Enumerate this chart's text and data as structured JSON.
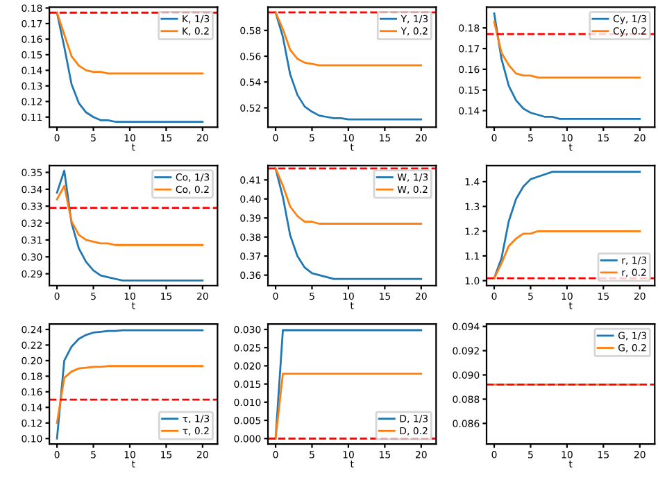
{
  "chart_data": [
    {
      "type": "line",
      "xlabel": "t",
      "x": [
        0,
        1,
        2,
        3,
        4,
        5,
        6,
        7,
        8,
        9,
        10,
        11,
        12,
        13,
        14,
        15,
        16,
        17,
        18,
        19,
        20
      ],
      "xlim": [
        -1.05,
        22.05
      ],
      "xticks": [
        0,
        5,
        10,
        15,
        20
      ],
      "ylim": [
        0.1035,
        0.1805
      ],
      "yticks": [
        0.11,
        0.12,
        0.13,
        0.14,
        0.15,
        0.16,
        0.17,
        0.18
      ],
      "legend": "top right",
      "line_style": "solid",
      "series": [
        {
          "name": "K, 1/3",
          "color": "#1f77b4",
          "values": [
            0.177,
            0.155,
            0.131,
            0.119,
            0.113,
            0.11,
            0.108,
            0.108,
            0.107,
            0.107,
            0.107,
            0.107,
            0.107,
            0.107,
            0.107,
            0.107,
            0.107,
            0.107,
            0.107,
            0.107,
            0.107
          ]
        },
        {
          "name": "K, 0.2",
          "color": "#ff7f0e",
          "values": [
            0.177,
            0.163,
            0.149,
            0.143,
            0.14,
            0.139,
            0.139,
            0.138,
            0.138,
            0.138,
            0.138,
            0.138,
            0.138,
            0.138,
            0.138,
            0.138,
            0.138,
            0.138,
            0.138,
            0.138,
            0.138
          ]
        }
      ],
      "ref_lines": [
        {
          "axis": "y",
          "value": 0.177,
          "color": "#ff0000",
          "line_style": "dashed"
        }
      ]
    },
    {
      "type": "line",
      "xlabel": "t",
      "x": [
        0,
        1,
        2,
        3,
        4,
        5,
        6,
        7,
        8,
        9,
        10,
        11,
        12,
        13,
        14,
        15,
        16,
        17,
        18,
        19,
        20
      ],
      "xlim": [
        -1.05,
        22.05
      ],
      "xticks": [
        0,
        5,
        10,
        15,
        20
      ],
      "ylim": [
        0.505,
        0.598
      ],
      "yticks": [
        0.52,
        0.54,
        0.56,
        0.58
      ],
      "legend": "top right",
      "line_style": "solid",
      "series": [
        {
          "name": "Y, 1/3",
          "color": "#1f77b4",
          "values": [
            0.594,
            0.575,
            0.546,
            0.53,
            0.521,
            0.517,
            0.514,
            0.513,
            0.512,
            0.512,
            0.511,
            0.511,
            0.511,
            0.511,
            0.511,
            0.511,
            0.511,
            0.511,
            0.511,
            0.511,
            0.511
          ]
        },
        {
          "name": "Y, 0.2",
          "color": "#ff7f0e",
          "values": [
            0.594,
            0.581,
            0.565,
            0.558,
            0.555,
            0.554,
            0.553,
            0.553,
            0.553,
            0.553,
            0.553,
            0.553,
            0.553,
            0.553,
            0.553,
            0.553,
            0.553,
            0.553,
            0.553,
            0.553,
            0.553
          ]
        }
      ],
      "ref_lines": [
        {
          "axis": "y",
          "value": 0.594,
          "color": "#ff0000",
          "line_style": "dashed"
        }
      ]
    },
    {
      "type": "line",
      "xlabel": "t",
      "x": [
        0,
        1,
        2,
        3,
        4,
        5,
        6,
        7,
        8,
        9,
        10,
        11,
        12,
        13,
        14,
        15,
        16,
        17,
        18,
        19,
        20
      ],
      "xlim": [
        -1.05,
        22.05
      ],
      "xticks": [
        0,
        5,
        10,
        15,
        20
      ],
      "ylim": [
        0.132,
        0.19
      ],
      "yticks": [
        0.14,
        0.15,
        0.16,
        0.17,
        0.18
      ],
      "legend": "top right",
      "line_style": "solid",
      "series": [
        {
          "name": "Cy, 1/3",
          "color": "#1f77b4",
          "values": [
            0.187,
            0.165,
            0.152,
            0.145,
            0.141,
            0.139,
            0.138,
            0.137,
            0.137,
            0.136,
            0.136,
            0.136,
            0.136,
            0.136,
            0.136,
            0.136,
            0.136,
            0.136,
            0.136,
            0.136,
            0.136
          ]
        },
        {
          "name": "Cy, 0.2",
          "color": "#ff7f0e",
          "values": [
            0.183,
            0.168,
            0.162,
            0.158,
            0.157,
            0.157,
            0.156,
            0.156,
            0.156,
            0.156,
            0.156,
            0.156,
            0.156,
            0.156,
            0.156,
            0.156,
            0.156,
            0.156,
            0.156,
            0.156,
            0.156
          ]
        }
      ],
      "ref_lines": [
        {
          "axis": "y",
          "value": 0.177,
          "color": "#ff0000",
          "line_style": "dashed"
        }
      ]
    },
    {
      "type": "line",
      "xlabel": "t",
      "x": [
        0,
        1,
        2,
        3,
        4,
        5,
        6,
        7,
        8,
        9,
        10,
        11,
        12,
        13,
        14,
        15,
        16,
        17,
        18,
        19,
        20
      ],
      "xlim": [
        -1.05,
        22.05
      ],
      "xticks": [
        0,
        5,
        10,
        15,
        20
      ],
      "ylim": [
        0.283,
        0.354
      ],
      "yticks": [
        0.29,
        {
          "value": 0.3,
          "label": "0.30"
        },
        0.31,
        0.32,
        0.33,
        0.34,
        0.35
      ],
      "legend": "top right",
      "line_style": "solid",
      "series": [
        {
          "name": "Co, 1/3",
          "color": "#1f77b4",
          "values": [
            0.338,
            0.351,
            0.32,
            0.305,
            0.297,
            0.292,
            0.289,
            0.288,
            0.287,
            0.286,
            0.286,
            0.286,
            0.286,
            0.286,
            0.286,
            0.286,
            0.286,
            0.286,
            0.286,
            0.286,
            0.286
          ]
        },
        {
          "name": "Co, 0.2",
          "color": "#ff7f0e",
          "values": [
            0.334,
            0.342,
            0.321,
            0.313,
            0.31,
            0.309,
            0.308,
            0.308,
            0.307,
            0.307,
            0.307,
            0.307,
            0.307,
            0.307,
            0.307,
            0.307,
            0.307,
            0.307,
            0.307,
            0.307,
            0.307
          ]
        }
      ],
      "ref_lines": [
        {
          "axis": "y",
          "value": 0.329,
          "color": "#ff0000",
          "line_style": "dashed"
        }
      ]
    },
    {
      "type": "line",
      "xlabel": "t",
      "x": [
        0,
        1,
        2,
        3,
        4,
        5,
        6,
        7,
        8,
        9,
        10,
        11,
        12,
        13,
        14,
        15,
        16,
        17,
        18,
        19,
        20
      ],
      "xlim": [
        -1.05,
        22.05
      ],
      "xticks": [
        0,
        5,
        10,
        15,
        20
      ],
      "ylim": [
        0.3545,
        0.4175
      ],
      "yticks": [
        0.36,
        0.37,
        0.38,
        0.39,
        {
          "value": 0.4,
          "label": "0.40"
        },
        0.41
      ],
      "legend": "top right",
      "line_style": "solid",
      "series": [
        {
          "name": "W, 1/3",
          "color": "#1f77b4",
          "values": [
            0.416,
            0.401,
            0.381,
            0.37,
            0.364,
            0.361,
            0.36,
            0.359,
            0.358,
            0.358,
            0.358,
            0.358,
            0.358,
            0.358,
            0.358,
            0.358,
            0.358,
            0.358,
            0.358,
            0.358,
            0.358
          ]
        },
        {
          "name": "W, 0.2",
          "color": "#ff7f0e",
          "values": [
            0.416,
            0.407,
            0.396,
            0.391,
            0.388,
            0.388,
            0.387,
            0.387,
            0.387,
            0.387,
            0.387,
            0.387,
            0.387,
            0.387,
            0.387,
            0.387,
            0.387,
            0.387,
            0.387,
            0.387,
            0.387
          ]
        }
      ],
      "ref_lines": [
        {
          "axis": "y",
          "value": 0.416,
          "color": "#ff0000",
          "line_style": "dashed"
        }
      ]
    },
    {
      "type": "line",
      "xlabel": "t",
      "x": [
        0,
        1,
        2,
        3,
        4,
        5,
        6,
        7,
        8,
        9,
        10,
        11,
        12,
        13,
        14,
        15,
        16,
        17,
        18,
        19,
        20
      ],
      "xlim": [
        -1.05,
        22.05
      ],
      "xticks": [
        0,
        5,
        10,
        15,
        20
      ],
      "ylim": [
        0.98,
        1.465
      ],
      "yticks": [
        {
          "value": 1.0,
          "label": "1.0"
        },
        1.1,
        1.2,
        1.3,
        1.4
      ],
      "legend": "bottom right",
      "line_style": "solid",
      "series": [
        {
          "name": "r, 1/3",
          "color": "#1f77b4",
          "values": [
            1.01,
            1.09,
            1.24,
            1.33,
            1.38,
            1.41,
            1.42,
            1.43,
            1.44,
            1.44,
            1.44,
            1.44,
            1.44,
            1.44,
            1.44,
            1.44,
            1.44,
            1.44,
            1.44,
            1.44,
            1.44
          ]
        },
        {
          "name": "r, 0.2",
          "color": "#ff7f0e",
          "values": [
            1.01,
            1.07,
            1.14,
            1.17,
            1.19,
            1.19,
            1.2,
            1.2,
            1.2,
            1.2,
            1.2,
            1.2,
            1.2,
            1.2,
            1.2,
            1.2,
            1.2,
            1.2,
            1.2,
            1.2,
            1.2
          ]
        }
      ],
      "ref_lines": [
        {
          "axis": "y",
          "value": 1.01,
          "color": "#ff0000",
          "line_style": "dashed"
        }
      ]
    },
    {
      "type": "line",
      "xlabel": "t",
      "x": [
        0,
        1,
        2,
        3,
        4,
        5,
        6,
        7,
        8,
        9,
        10,
        11,
        12,
        13,
        14,
        15,
        16,
        17,
        18,
        19,
        20
      ],
      "xlim": [
        -1.05,
        22.05
      ],
      "xticks": [
        0,
        5,
        10,
        15,
        20
      ],
      "ylim": [
        0.093,
        0.247
      ],
      "yticks": [
        {
          "value": 0.1,
          "label": "0.10"
        },
        0.12,
        0.14,
        0.16,
        0.18,
        {
          "value": 0.2,
          "label": "0.20"
        },
        0.22,
        0.24
      ],
      "legend": "bottom right",
      "line_style": "solid",
      "series": [
        {
          "name": "τ, 1/3",
          "color": "#1f77b4",
          "values": [
            0.1,
            0.2,
            0.218,
            0.228,
            0.233,
            0.236,
            0.237,
            0.238,
            0.238,
            0.239,
            0.239,
            0.239,
            0.239,
            0.239,
            0.239,
            0.239,
            0.239,
            0.239,
            0.239,
            0.239,
            0.239
          ]
        },
        {
          "name": "τ, 0.2",
          "color": "#ff7f0e",
          "values": [
            0.12,
            0.178,
            0.186,
            0.19,
            0.191,
            0.192,
            0.192,
            0.193,
            0.193,
            0.193,
            0.193,
            0.193,
            0.193,
            0.193,
            0.193,
            0.193,
            0.193,
            0.193,
            0.193,
            0.193,
            0.193
          ]
        }
      ],
      "ref_lines": [
        {
          "axis": "y",
          "value": 0.15,
          "color": "#ff0000",
          "line_style": "dashed"
        }
      ]
    },
    {
      "type": "line",
      "xlabel": "t",
      "x": [
        0,
        1,
        2,
        3,
        4,
        5,
        6,
        7,
        8,
        9,
        10,
        11,
        12,
        13,
        14,
        15,
        16,
        17,
        18,
        19,
        20
      ],
      "xlim": [
        -1.05,
        22.05
      ],
      "xticks": [
        0,
        5,
        10,
        15,
        20
      ],
      "ylim": [
        -0.0015,
        0.0315
      ],
      "yticks": [
        {
          "value": 0,
          "label": "0.000"
        },
        {
          "value": 0.005,
          "label": "0.005"
        },
        {
          "value": 0.01,
          "label": "0.010"
        },
        {
          "value": 0.015,
          "label": "0.015"
        },
        {
          "value": 0.02,
          "label": "0.020"
        },
        {
          "value": 0.025,
          "label": "0.025"
        },
        {
          "value": 0.03,
          "label": "0.030"
        }
      ],
      "legend": "bottom right",
      "line_style": "solid",
      "series": [
        {
          "name": "D, 1/3",
          "color": "#1f77b4",
          "values": [
            0,
            0.0298,
            0.0298,
            0.0298,
            0.0298,
            0.0298,
            0.0298,
            0.0298,
            0.0298,
            0.0298,
            0.0298,
            0.0298,
            0.0298,
            0.0298,
            0.0298,
            0.0298,
            0.0298,
            0.0298,
            0.0298,
            0.0298,
            0.0298
          ]
        },
        {
          "name": "D, 0.2",
          "color": "#ff7f0e",
          "values": [
            0,
            0.0178,
            0.0178,
            0.0178,
            0.0178,
            0.0178,
            0.0178,
            0.0178,
            0.0178,
            0.0178,
            0.0178,
            0.0178,
            0.0178,
            0.0178,
            0.0178,
            0.0178,
            0.0178,
            0.0178,
            0.0178,
            0.0178,
            0.0178
          ]
        }
      ],
      "ref_lines": [
        {
          "axis": "y",
          "value": 0,
          "color": "#ff0000",
          "line_style": "dashed"
        }
      ]
    },
    {
      "type": "line",
      "xlabel": "t",
      "x": [
        0,
        1,
        2,
        3,
        4,
        5,
        6,
        7,
        8,
        9,
        10,
        11,
        12,
        13,
        14,
        15,
        16,
        17,
        18,
        19,
        20
      ],
      "xlim": [
        -1.05,
        22.05
      ],
      "xticks": [
        0,
        5,
        10,
        15,
        20
      ],
      "ylim": [
        0.0843,
        0.0942
      ],
      "yticks": [
        {
          "value": 0.086,
          "label": "0.086"
        },
        {
          "value": 0.088,
          "label": "0.088"
        },
        {
          "value": 0.09,
          "label": "0.090"
        },
        {
          "value": 0.092,
          "label": "0.092"
        },
        {
          "value": 0.094,
          "label": "0.094"
        }
      ],
      "legend": "top right",
      "line_style": "solid",
      "series": [
        {
          "name": "G, 1/3",
          "color": "#1f77b4",
          "values": [
            null,
            null,
            null,
            null,
            null,
            null,
            null,
            null,
            null,
            null,
            null,
            null,
            null,
            null,
            null,
            null,
            null,
            null,
            null,
            null,
            null
          ]
        },
        {
          "name": "G, 0.2",
          "color": "#ff7f0e",
          "values": [
            0.0892,
            0.0892,
            0.0892,
            0.0892,
            0.0892,
            0.0892,
            0.0892,
            0.0892,
            0.0892,
            0.0892,
            0.0892,
            0.0892,
            0.0892,
            0.0892,
            0.0892,
            0.0892,
            0.0892,
            0.0892,
            0.0892,
            0.0892,
            0.0892
          ]
        }
      ],
      "ref_lines": [
        {
          "axis": "y",
          "value": 0.0892,
          "color": "#ff0000",
          "line_style": "dashed"
        }
      ]
    }
  ]
}
